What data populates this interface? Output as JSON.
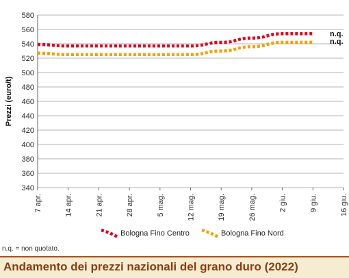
{
  "chart_data": {
    "type": "line",
    "ylabel": "Prezzi (euro/t)",
    "ylim": [
      340,
      580
    ],
    "yticks": [
      "340",
      "360",
      "380",
      "400",
      "420",
      "440",
      "460",
      "480",
      "500",
      "520",
      "540",
      "560",
      "580"
    ],
    "categories": [
      "7 apr.",
      "14 apr.",
      "21 apr.",
      "28 apr.",
      "5 mag.",
      "12 mag.",
      "19 mag.",
      "26 mag.",
      "2 giu.",
      "9 giu.",
      "16 giu."
    ],
    "grid": true,
    "legend_position": "bottom",
    "series": [
      {
        "name": "Bologna Fino Centro",
        "color": "#e0001b",
        "values": [
          539,
          537,
          537,
          537,
          537,
          537,
          542,
          548,
          554,
          554,
          null
        ],
        "end_label": "n.q."
      },
      {
        "name": "Bologna Fino Nord",
        "color": "#f5a000",
        "values": [
          527,
          525,
          525,
          525,
          525,
          525,
          530,
          536,
          542,
          542,
          null
        ],
        "end_label": "n.q."
      }
    ]
  },
  "footnote": "n.q. = non quotato.",
  "title": "Andamento dei prezzi nazionali del grano duro (2022)"
}
